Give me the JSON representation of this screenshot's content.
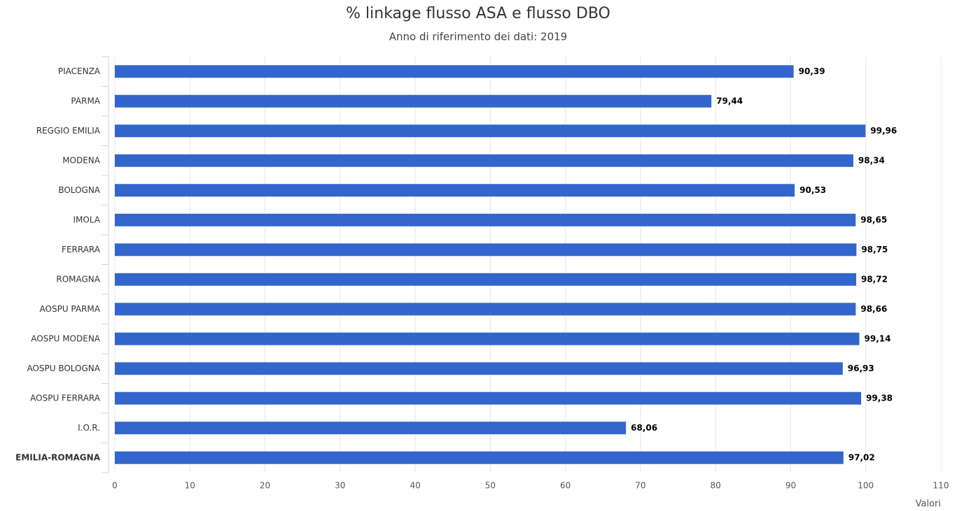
{
  "chart_data": {
    "type": "bar",
    "orientation": "horizontal",
    "title": "% linkage flusso ASA e flusso DBO",
    "subtitle": "Anno di riferimento dei dati: 2019",
    "x_label": "Valori",
    "categories": [
      "PIACENZA",
      "PARMA",
      "REGGIO EMILIA",
      "MODENA",
      "BOLOGNA",
      "IMOLA",
      "FERRARA",
      "ROMAGNA",
      "AOSPU PARMA",
      "AOSPU MODENA",
      "AOSPU BOLOGNA",
      "AOSPU FERRARA",
      "I.O.R.",
      "EMILIA-ROMAGNA"
    ],
    "values": [
      90.39,
      79.44,
      99.96,
      98.34,
      90.53,
      98.65,
      98.75,
      98.72,
      98.66,
      99.14,
      96.93,
      99.38,
      68.06,
      97.02
    ],
    "value_labels": [
      "90,39",
      "79,44",
      "99,96",
      "98,34",
      "90,53",
      "98,65",
      "98,75",
      "98,72",
      "98,66",
      "99,14",
      "96,93",
      "99,38",
      "68,06",
      "97,02"
    ],
    "color": "#3366cc",
    "xlim": [
      0,
      110
    ],
    "xticks": [
      0,
      10,
      20,
      30,
      40,
      50,
      60,
      70,
      80,
      90,
      100,
      110
    ],
    "grid": true
  }
}
